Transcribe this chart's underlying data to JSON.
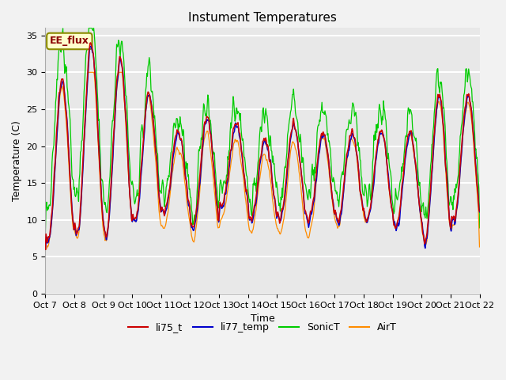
{
  "title": "Instument Temperatures",
  "xlabel": "Time",
  "ylabel": "Temperature (C)",
  "ylim": [
    0,
    36
  ],
  "yticks": [
    0,
    5,
    10,
    15,
    20,
    25,
    30,
    35
  ],
  "x_labels": [
    "Oct 7",
    "Oct 8",
    "Oct 9",
    "Oct 10",
    "Oct 11",
    "Oct 12",
    "Oct 13",
    "Oct 14",
    "Oct 15",
    "Oct 16",
    "Oct 17",
    "Oct 18",
    "Oct 19",
    "Oct 20",
    "Oct 21",
    "Oct 22"
  ],
  "annotation_text": "EE_flux",
  "annotation_color": "#8B0000",
  "annotation_bg": "#FFFFCC",
  "annotation_border": "#8B8B00",
  "colors": {
    "li75_t": "#CC0000",
    "li77_temp": "#0000CC",
    "SonicT": "#00CC00",
    "AirT": "#FF8C00"
  },
  "plot_bg_color": "#E8E8E8",
  "fig_bg_color": "#F2F2F2",
  "grid_color": "#FFFFFF",
  "title_fontsize": 11,
  "axis_fontsize": 9,
  "tick_fontsize": 8,
  "legend_fontsize": 9
}
